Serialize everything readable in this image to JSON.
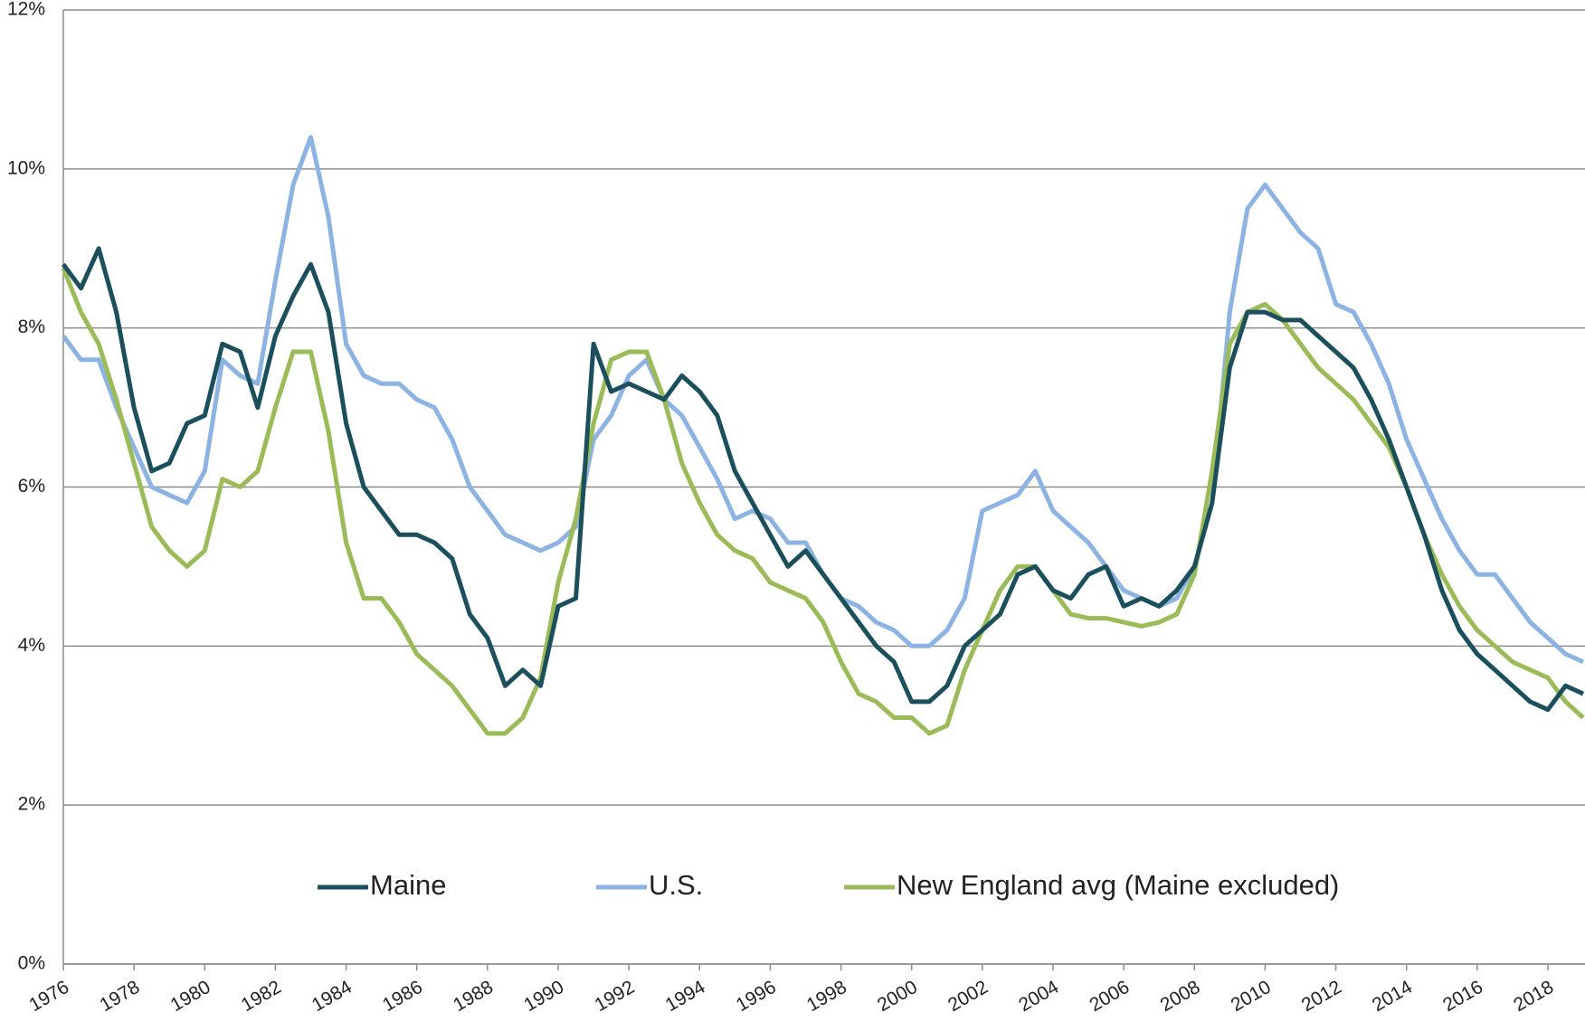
{
  "chart_data": {
    "type": "line",
    "x": [
      1976,
      1976.5,
      1977,
      1977.5,
      1978,
      1978.5,
      1979,
      1979.5,
      1980,
      1980.5,
      1981,
      1981.5,
      1982,
      1982.5,
      1983,
      1983.5,
      1984,
      1984.5,
      1985,
      1985.5,
      1986,
      1986.5,
      1987,
      1987.5,
      1988,
      1988.5,
      1989,
      1989.5,
      1990,
      1990.5,
      1991,
      1991.5,
      1992,
      1992.5,
      1993,
      1993.5,
      1994,
      1994.5,
      1995,
      1995.5,
      1996,
      1996.5,
      1997,
      1997.5,
      1998,
      1998.5,
      1999,
      1999.5,
      2000,
      2000.5,
      2001,
      2001.5,
      2002,
      2002.5,
      2003,
      2003.5,
      2004,
      2004.5,
      2005,
      2005.5,
      2006,
      2006.5,
      2007,
      2007.5,
      2008,
      2008.5,
      2009,
      2009.5,
      2010,
      2010.5,
      2011,
      2011.5,
      2012,
      2012.5,
      2013,
      2013.5,
      2014,
      2014.5,
      2015,
      2015.5,
      2016,
      2016.5,
      2017,
      2017.5,
      2018,
      2018.5,
      2019
    ],
    "series": [
      {
        "name": "Maine",
        "color": "#1b4f5c",
        "values": [
          8.8,
          8.5,
          9.0,
          8.2,
          7.0,
          6.2,
          6.3,
          6.8,
          6.9,
          7.8,
          7.7,
          7.0,
          7.9,
          8.4,
          8.8,
          8.2,
          6.8,
          6.0,
          5.7,
          5.4,
          5.4,
          5.3,
          5.1,
          4.4,
          4.1,
          3.5,
          3.7,
          3.5,
          4.5,
          4.6,
          7.8,
          7.2,
          7.3,
          7.2,
          7.1,
          7.4,
          7.2,
          6.9,
          6.2,
          5.8,
          5.4,
          5.0,
          5.2,
          4.9,
          4.6,
          4.3,
          4.0,
          3.8,
          3.3,
          3.3,
          3.5,
          4.0,
          4.2,
          4.4,
          4.9,
          5.0,
          4.7,
          4.6,
          4.9,
          5.0,
          4.5,
          4.6,
          4.5,
          4.7,
          5.0,
          5.8,
          7.5,
          8.2,
          8.2,
          8.1,
          8.1,
          7.9,
          7.7,
          7.5,
          7.1,
          6.6,
          6.0,
          5.4,
          4.7,
          4.2,
          3.9,
          3.7,
          3.5,
          3.3,
          3.2,
          3.5,
          3.4
        ]
      },
      {
        "name": "U.S.",
        "color": "#8db3e2",
        "values": [
          7.9,
          7.6,
          7.6,
          7.0,
          6.5,
          6.0,
          5.9,
          5.8,
          6.2,
          7.6,
          7.4,
          7.3,
          8.6,
          9.8,
          10.4,
          9.4,
          7.8,
          7.4,
          7.3,
          7.3,
          7.1,
          7.0,
          6.6,
          6.0,
          5.7,
          5.4,
          5.3,
          5.2,
          5.3,
          5.5,
          6.6,
          6.9,
          7.4,
          7.6,
          7.1,
          6.9,
          6.5,
          6.1,
          5.6,
          5.7,
          5.6,
          5.3,
          5.3,
          4.9,
          4.6,
          4.5,
          4.3,
          4.2,
          4.0,
          4.0,
          4.2,
          4.6,
          5.7,
          5.8,
          5.9,
          6.2,
          5.7,
          5.5,
          5.3,
          5.0,
          4.7,
          4.6,
          4.5,
          4.6,
          5.0,
          5.8,
          8.2,
          9.5,
          9.8,
          9.5,
          9.2,
          9.0,
          8.3,
          8.2,
          7.8,
          7.3,
          6.6,
          6.1,
          5.6,
          5.2,
          4.9,
          4.9,
          4.6,
          4.3,
          4.1,
          3.9,
          3.8
        ]
      },
      {
        "name": "New England avg (Maine excluded)",
        "color": "#9bbb59",
        "values": [
          8.75,
          8.2,
          7.8,
          7.1,
          6.3,
          5.5,
          5.2,
          5.0,
          5.2,
          6.1,
          6.0,
          6.2,
          7.0,
          7.7,
          7.7,
          6.7,
          5.3,
          4.6,
          4.6,
          4.3,
          3.9,
          3.7,
          3.5,
          3.2,
          2.9,
          2.9,
          3.1,
          3.6,
          4.8,
          5.6,
          6.8,
          7.6,
          7.7,
          7.7,
          7.1,
          6.3,
          5.8,
          5.4,
          5.2,
          5.1,
          4.8,
          4.7,
          4.6,
          4.3,
          3.8,
          3.4,
          3.3,
          3.1,
          3.1,
          2.9,
          3.0,
          3.7,
          4.2,
          4.7,
          5.0,
          5.0,
          4.7,
          4.4,
          4.35,
          4.35,
          4.3,
          4.25,
          4.3,
          4.4,
          4.9,
          6.2,
          7.8,
          8.2,
          8.3,
          8.1,
          7.8,
          7.5,
          7.3,
          7.1,
          6.8,
          6.5,
          6.0,
          5.4,
          4.9,
          4.5,
          4.2,
          4.0,
          3.8,
          3.7,
          3.6,
          3.3,
          3.1
        ]
      }
    ],
    "xlim": [
      1976,
      2019.05
    ],
    "xticks": [
      1976,
      1978,
      1980,
      1982,
      1984,
      1986,
      1988,
      1990,
      1992,
      1994,
      1996,
      1998,
      2000,
      2002,
      2004,
      2006,
      2008,
      2010,
      2012,
      2014,
      2016,
      2018
    ],
    "ylim": [
      0,
      12
    ],
    "yticks": [
      {
        "value": 0,
        "label": "0%"
      },
      {
        "value": 2,
        "label": "2%"
      },
      {
        "value": 4,
        "label": "4%"
      },
      {
        "value": 6,
        "label": "6%"
      },
      {
        "value": 8,
        "label": "8%"
      },
      {
        "value": 10,
        "label": "10%"
      },
      {
        "value": 12,
        "label": "12%"
      }
    ],
    "grid": true
  }
}
